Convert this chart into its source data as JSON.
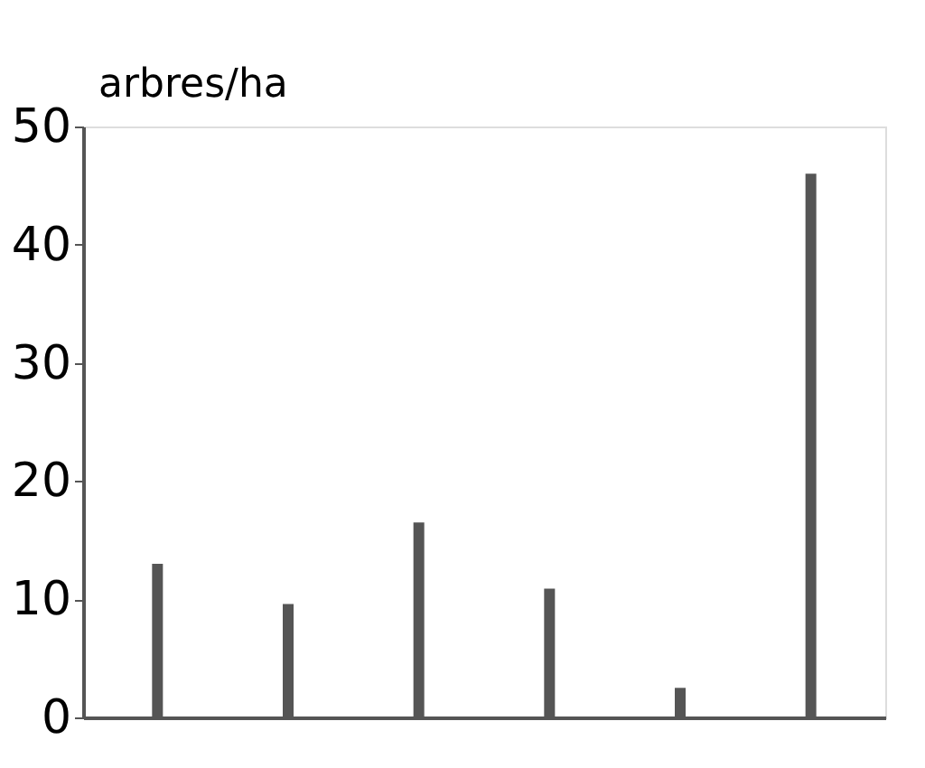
{
  "chart_data": {
    "type": "bar",
    "ylabel": "arbres/ha",
    "categories": [
      null,
      null,
      null,
      null,
      null,
      null
    ],
    "values": [
      13,
      9.6,
      16.5,
      10.9,
      2.5,
      46
    ],
    "color": "#555555",
    "ylim": [
      0,
      50
    ],
    "yticks": [
      0,
      10,
      20,
      30,
      40,
      50
    ],
    "grid": false
  }
}
